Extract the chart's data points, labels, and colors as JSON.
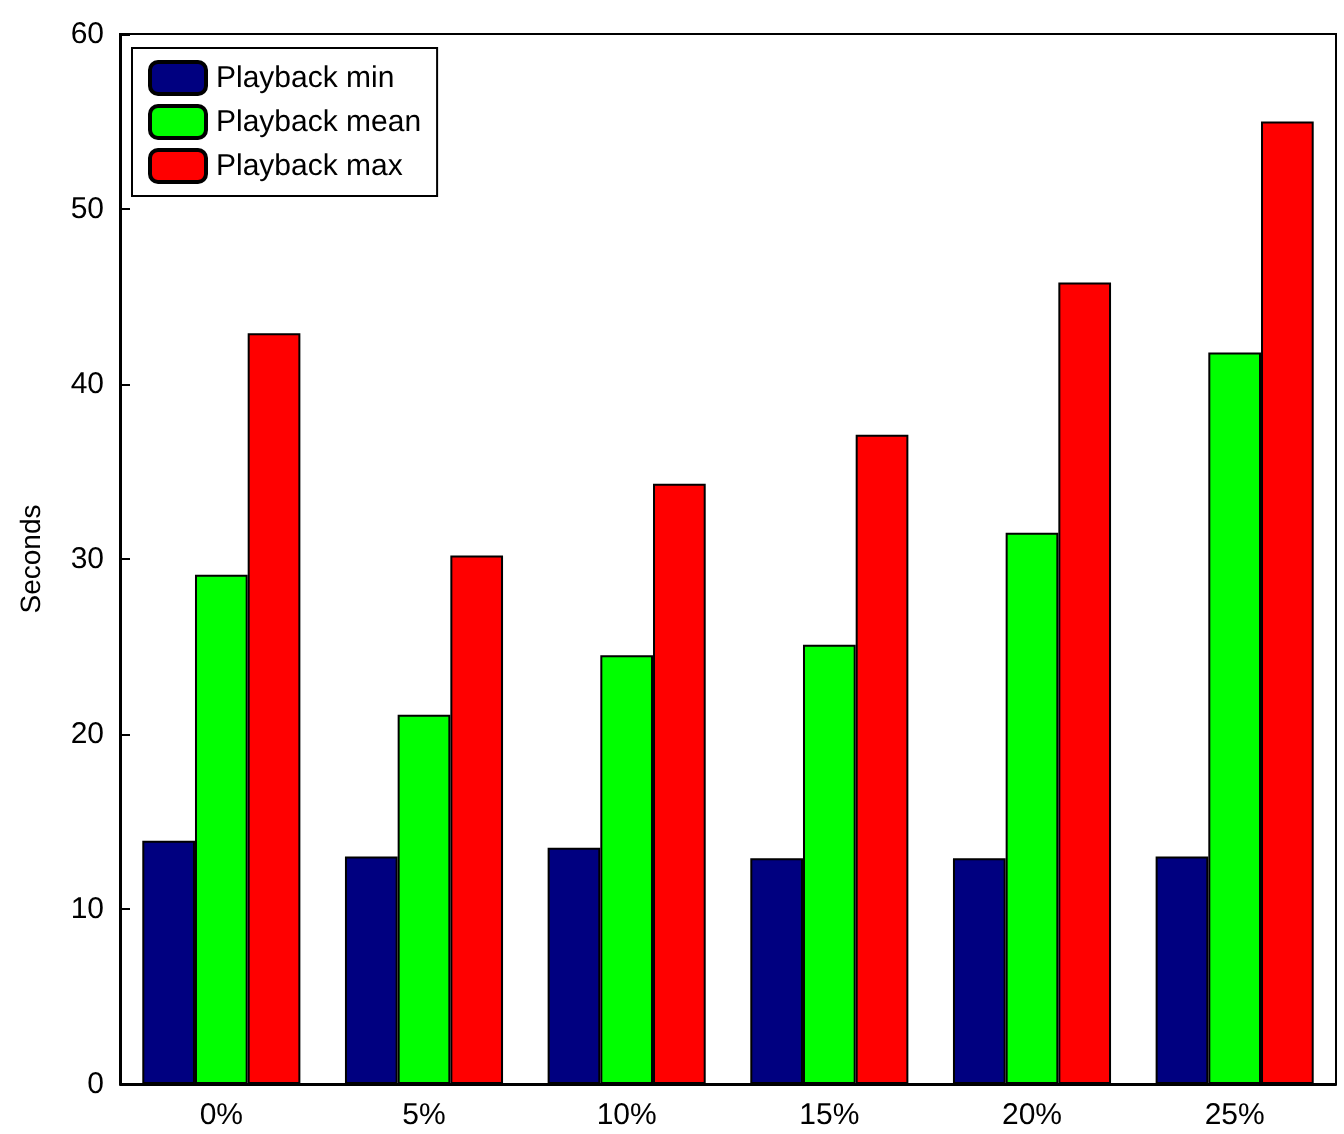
{
  "chart_data": {
    "type": "bar",
    "ylabel": "Seconds",
    "categories": [
      "0%",
      "5%",
      "10%",
      "15%",
      "20%",
      "25%"
    ],
    "series": [
      {
        "name": "Playback min",
        "color": "#000080",
        "values": [
          13.9,
          13.0,
          13.5,
          12.9,
          12.9,
          13.0
        ]
      },
      {
        "name": "Playback mean",
        "color": "#00ff00",
        "values": [
          29.1,
          21.1,
          24.5,
          25.1,
          31.5,
          41.8
        ]
      },
      {
        "name": "Playback max",
        "color": "#ff0000",
        "values": [
          42.9,
          30.2,
          34.3,
          37.1,
          45.8,
          55.0
        ]
      }
    ],
    "ylim": [
      0,
      60
    ],
    "yticks": [
      0,
      10,
      20,
      30,
      40,
      50,
      60
    ],
    "grid": false,
    "legend": "top left"
  }
}
